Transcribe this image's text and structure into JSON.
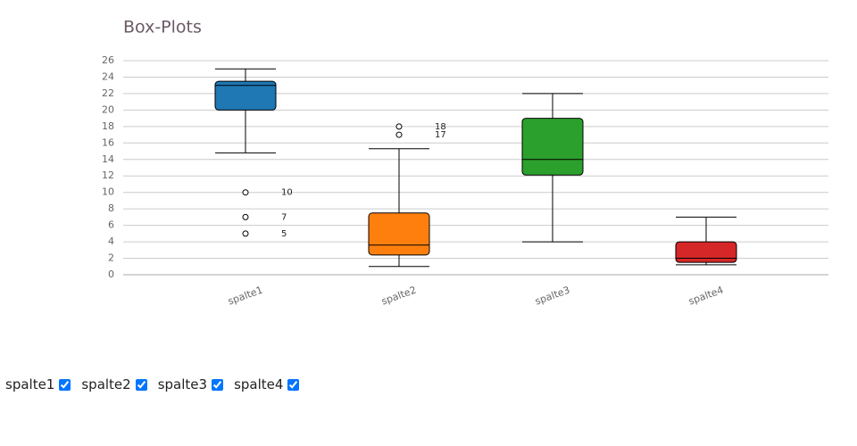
{
  "chart_data": {
    "type": "box",
    "title": "Box-Plots",
    "categories": [
      "spalte1",
      "spalte2",
      "spalte3",
      "spalte4"
    ],
    "boxes": [
      {
        "color": "#1f77b4",
        "low": 14.8,
        "q1": 20,
        "median": 23,
        "q3": 23.5,
        "high": 25,
        "outliers": [
          10,
          7,
          5
        ]
      },
      {
        "color": "#ff7f0e",
        "low": 1,
        "q1": 2.4,
        "median": 3.6,
        "q3": 7.5,
        "high": 15.3,
        "outliers": [
          18,
          17
        ]
      },
      {
        "color": "#2ca02c",
        "low": 4,
        "q1": 12.1,
        "median": 14,
        "q3": 19,
        "high": 22,
        "outliers": []
      },
      {
        "color": "#d62728",
        "low": 1.2,
        "q1": 1.5,
        "median": 2,
        "q3": 4,
        "high": 7,
        "outliers": []
      }
    ],
    "ylim": [
      0,
      26
    ],
    "yticks": [
      0,
      2,
      4,
      6,
      8,
      10,
      12,
      14,
      16,
      18,
      20,
      22,
      24,
      26
    ],
    "grid": true
  }
}
